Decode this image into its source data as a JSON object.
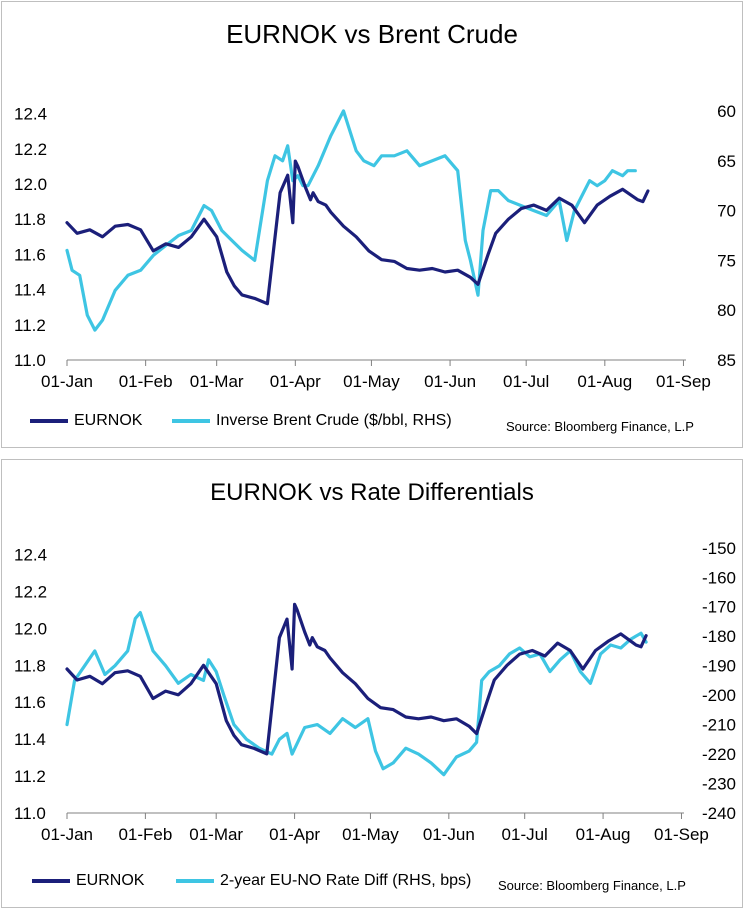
{
  "colors": {
    "eurnok": "#1b1f7a",
    "secondary": "#3ec5e3",
    "axis": "#808080"
  },
  "chart_data": [
    {
      "type": "line",
      "title": "EURNOK vs Brent Crude",
      "x_ticks": [
        "01-Jan",
        "01-Feb",
        "01-Mar",
        "01-Apr",
        "01-May",
        "01-Jun",
        "01-Jul",
        "01-Aug",
        "01-Sep"
      ],
      "y_left": {
        "ticks": [
          "11.0",
          "11.2",
          "11.4",
          "11.6",
          "11.8",
          "12.0",
          "12.2",
          "12.4"
        ],
        "range": [
          11.0,
          12.5
        ]
      },
      "y_right": {
        "ticks": [
          "60",
          "65",
          "70",
          "75",
          "80",
          "85"
        ],
        "range": [
          85,
          58.5
        ],
        "label": "Inverse Brent Crude ($/bbl, RHS)"
      },
      "series": [
        {
          "name": "EURNOK",
          "axis": "left",
          "x_days": [
            1,
            5,
            10,
            15,
            20,
            25,
            30,
            35,
            40,
            45,
            50,
            55,
            60,
            64,
            67,
            70,
            75,
            80,
            85,
            88,
            90,
            91,
            92,
            95,
            97,
            98,
            100,
            103,
            105,
            110,
            115,
            120,
            125,
            130,
            135,
            140,
            145,
            150,
            155,
            160,
            163,
            167,
            170,
            175,
            180,
            185,
            190,
            195,
            200,
            205,
            210,
            215,
            220,
            225,
            226,
            228,
            230
          ],
          "values": [
            11.78,
            11.72,
            11.74,
            11.7,
            11.76,
            11.77,
            11.74,
            11.62,
            11.66,
            11.64,
            11.7,
            11.8,
            11.7,
            11.5,
            11.42,
            11.37,
            11.35,
            11.32,
            11.95,
            12.05,
            11.78,
            12.13,
            12.1,
            11.98,
            11.91,
            11.95,
            11.9,
            11.88,
            11.84,
            11.76,
            11.7,
            11.62,
            11.57,
            11.56,
            11.52,
            11.51,
            11.52,
            11.5,
            11.51,
            11.47,
            11.43,
            11.6,
            11.72,
            11.8,
            11.86,
            11.88,
            11.85,
            11.92,
            11.88,
            11.78,
            11.88,
            11.93,
            11.97,
            11.92,
            11.91,
            11.9,
            11.96
          ]
        },
        {
          "name": "Inverse Brent Crude ($/bbl, RHS)",
          "axis": "right",
          "x_days": [
            1,
            3,
            6,
            9,
            12,
            15,
            20,
            25,
            30,
            35,
            40,
            45,
            50,
            55,
            58,
            62,
            66,
            70,
            75,
            80,
            83,
            86,
            88,
            90,
            92,
            94,
            96,
            100,
            105,
            110,
            115,
            118,
            122,
            125,
            130,
            135,
            140,
            145,
            150,
            155,
            158,
            160,
            163,
            165,
            168,
            171,
            175,
            180,
            185,
            190,
            195,
            198,
            201,
            204,
            207,
            210,
            213,
            216,
            220,
            222,
            225
          ],
          "values": [
            74.0,
            76.0,
            76.5,
            80.5,
            82.0,
            81.0,
            78.0,
            76.5,
            76.0,
            74.5,
            73.5,
            72.5,
            72.0,
            69.5,
            70.0,
            72.0,
            73.0,
            74.0,
            75.0,
            67.0,
            64.5,
            65.0,
            63.5,
            67.0,
            66.5,
            67.5,
            67.5,
            65.5,
            62.5,
            60.0,
            64.0,
            65.0,
            65.5,
            64.5,
            64.5,
            64.0,
            65.5,
            65.0,
            64.5,
            66.0,
            73.0,
            75.0,
            78.5,
            72.0,
            68.0,
            68.0,
            69.0,
            69.5,
            70.0,
            70.5,
            69.0,
            73.0,
            70.0,
            68.5,
            67.0,
            67.5,
            67.0,
            66.0,
            66.5,
            66.0,
            66.0
          ]
        }
      ],
      "legend": [
        "EURNOK",
        "Inverse Brent Crude ($/bbl, RHS)"
      ],
      "source": "Source: Bloomberg Finance, L.P"
    },
    {
      "type": "line",
      "title": "EURNOK vs Rate Differentials",
      "x_ticks": [
        "01-Jan",
        "01-Feb",
        "01-Mar",
        "01-Apr",
        "01-May",
        "01-Jun",
        "01-Jul",
        "01-Aug",
        "01-Sep"
      ],
      "y_left": {
        "ticks": [
          "11.0",
          "11.2",
          "11.4",
          "11.6",
          "11.8",
          "12.0",
          "12.2",
          "12.4"
        ],
        "range": [
          11.0,
          12.5
        ]
      },
      "y_right": {
        "ticks": [
          "-150",
          "-160",
          "-170",
          "-180",
          "-190",
          "-200",
          "-210",
          "-220",
          "-230",
          "-240"
        ],
        "range": [
          -240,
          -146
        ],
        "label": "2-year EU-NO Rate Diff (RHS, bps)"
      },
      "series": [
        {
          "name": "EURNOK",
          "axis": "left",
          "x_days": [
            1,
            5,
            10,
            15,
            20,
            25,
            30,
            35,
            40,
            45,
            50,
            55,
            60,
            64,
            67,
            70,
            75,
            80,
            85,
            88,
            90,
            91,
            92,
            95,
            97,
            98,
            100,
            103,
            105,
            110,
            115,
            120,
            125,
            130,
            135,
            140,
            145,
            150,
            155,
            160,
            163,
            167,
            170,
            175,
            180,
            185,
            190,
            195,
            200,
            205,
            210,
            215,
            220,
            225,
            226,
            228,
            230
          ],
          "values": [
            11.78,
            11.72,
            11.74,
            11.7,
            11.76,
            11.77,
            11.74,
            11.62,
            11.66,
            11.64,
            11.7,
            11.8,
            11.7,
            11.5,
            11.42,
            11.37,
            11.35,
            11.32,
            11.95,
            12.05,
            11.78,
            12.13,
            12.1,
            11.98,
            11.91,
            11.95,
            11.9,
            11.88,
            11.84,
            11.76,
            11.7,
            11.62,
            11.57,
            11.56,
            11.52,
            11.51,
            11.52,
            11.5,
            11.51,
            11.47,
            11.43,
            11.6,
            11.72,
            11.8,
            11.86,
            11.88,
            11.85,
            11.92,
            11.88,
            11.78,
            11.88,
            11.93,
            11.97,
            11.92,
            11.91,
            11.9,
            11.96
          ]
        },
        {
          "name": "2-year EU-NO Rate Diff (RHS, bps)",
          "axis": "right",
          "x_days": [
            1,
            4,
            8,
            12,
            16,
            20,
            25,
            28,
            30,
            35,
            40,
            45,
            50,
            55,
            57,
            60,
            63,
            67,
            72,
            77,
            82,
            85,
            88,
            90,
            95,
            100,
            105,
            110,
            115,
            120,
            123,
            126,
            130,
            135,
            140,
            145,
            150,
            155,
            160,
            163,
            165,
            168,
            172,
            176,
            180,
            184,
            188,
            192,
            196,
            200,
            204,
            208,
            212,
            216,
            220,
            224,
            228,
            230
          ],
          "values": [
            -210,
            -195,
            -190,
            -185,
            -193,
            -190,
            -185,
            -174,
            -172,
            -185,
            -190,
            -196,
            -193,
            -195,
            -188,
            -192,
            -200,
            -210,
            -215,
            -218,
            -220,
            -215,
            -213,
            -220,
            -211,
            -210,
            -213,
            -208,
            -211,
            -208,
            -219,
            -225,
            -223,
            -218,
            -220,
            -223,
            -227,
            -221,
            -219,
            -216,
            -195,
            -192,
            -190,
            -186,
            -184,
            -187,
            -186,
            -192,
            -188,
            -185,
            -192,
            -196,
            -186,
            -183,
            -184,
            -181,
            -179,
            -182
          ]
        }
      ],
      "legend": [
        "EURNOK",
        "2-year EU-NO Rate Diff (RHS, bps)"
      ],
      "source": "Source: Bloomberg Finance, L.P"
    }
  ]
}
